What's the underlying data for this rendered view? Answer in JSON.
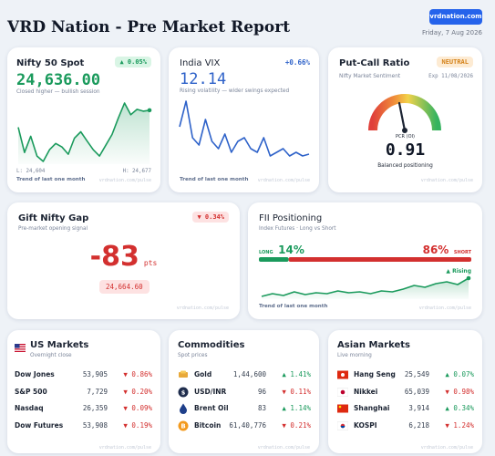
{
  "header": {
    "title": "VRD Nation - Pre Market Report",
    "button": "vrdnation.com",
    "date": "Friday, 7 Aug 2026"
  },
  "nifty": {
    "title": "Nifty 50 Spot",
    "change": "▲ 0.05%",
    "price": "24,636.00",
    "note": "Closed higher — bullish session",
    "low": "L: 24,604",
    "high": "H: 24,677",
    "caption": "Trend of last one month",
    "watermark": "vrdnation.com/pulse",
    "color": "#1a9a5c",
    "trend": [
      24650,
      24622,
      24640,
      24618,
      24612,
      24625,
      24632,
      24628,
      24620,
      24638,
      24645,
      24635,
      24625,
      24618,
      24630,
      24642,
      24660,
      24677,
      24664,
      24670,
      24668,
      24669
    ]
  },
  "vix": {
    "title": "India VIX",
    "change": "+0.66%",
    "value": "12.14",
    "note": "Rising volatility — wider swings expected",
    "caption": "Trend of last one month",
    "watermark": "vrdnation.com/pulse",
    "color": "#2e62c9",
    "trend": [
      12.9,
      13.6,
      12.6,
      12.4,
      13.1,
      12.5,
      12.3,
      12.7,
      12.2,
      12.5,
      12.6,
      12.3,
      12.2,
      12.6,
      12.1,
      12.2,
      12.3,
      12.1,
      12.2,
      12.1,
      12.15
    ]
  },
  "pcr": {
    "title": "Put-Call Ratio",
    "badge": "NEUTRAL",
    "subtitle": "Nifty Market Sentiment",
    "expiry": "Exp 11/08/2026",
    "gauge_label": "PCR (OI)",
    "value": "0.91",
    "note": "Balanced positioning",
    "watermark": "vrdnation.com/pulse"
  },
  "gift": {
    "title": "Gift Nifty Gap",
    "change": "▼ 0.34%",
    "subtitle": "Pre-market opening signal",
    "gap": "-83",
    "unit": "pts",
    "level": "24,664.60",
    "watermark": "vrdnation.com/pulse"
  },
  "fii": {
    "title": "FII Positioning",
    "subtitle": "Index Futures · Long vs Short",
    "long_label": "LONG",
    "long": {
      "value": 14,
      "label": "14%"
    },
    "short": {
      "value": 86,
      "label": "86%"
    },
    "short_label": "SHORT",
    "long_color": "#1a9a5c",
    "short_color": "#d3302f",
    "trend_label": "▲ Rising",
    "caption": "Trend of last one month",
    "watermark": "vrdnation.com/pulse",
    "trend": [
      12.0,
      12.3,
      12.1,
      12.5,
      12.2,
      12.4,
      12.3,
      12.6,
      12.4,
      12.5,
      12.3,
      12.6,
      12.5,
      12.8,
      13.2,
      13.0,
      13.4,
      13.6,
      13.3,
      14.0
    ]
  },
  "us": {
    "title": "US Markets",
    "subtitle": "Overnight close",
    "watermark": "vrdnation.com/pulse",
    "rows": [
      {
        "name": "Dow Jones",
        "value": "53,905",
        "change": "▼ 0.86%",
        "color": "#d3302f"
      },
      {
        "name": "S&P 500",
        "value": "7,729",
        "change": "▼ 0.20%",
        "color": "#d3302f"
      },
      {
        "name": "Nasdaq",
        "value": "26,359",
        "change": "▼ 0.09%",
        "color": "#d3302f"
      },
      {
        "name": "Dow Futures",
        "value": "53,908",
        "change": "▼ 0.19%",
        "color": "#d3302f"
      }
    ]
  },
  "commodities": {
    "title": "Commodities",
    "subtitle": "Spot prices",
    "watermark": "vrdnation.com/pulse",
    "rows": [
      {
        "name": "Gold",
        "value": "1,44,600",
        "change": "▲ 1.41%",
        "color": "#1a9a5c"
      },
      {
        "name": "USD/INR",
        "value": "96",
        "change": "▼ 0.11%",
        "color": "#d3302f"
      },
      {
        "name": "Brent Oil",
        "value": "83",
        "change": "▲ 1.14%",
        "color": "#1a9a5c"
      },
      {
        "name": "Bitcoin",
        "value": "61,40,776",
        "change": "▼ 0.21%",
        "color": "#d3302f"
      }
    ]
  },
  "asia": {
    "title": "Asian Markets",
    "subtitle": "Live morning",
    "watermark": "vrdnation.com/pulse",
    "rows": [
      {
        "name": "Hang Seng",
        "value": "25,549",
        "change": "▲ 0.07%",
        "color": "#1a9a5c"
      },
      {
        "name": "Nikkei",
        "value": "65,039",
        "change": "▼ 0.98%",
        "color": "#d3302f"
      },
      {
        "name": "Shanghai",
        "value": "3,914",
        "change": "▲ 0.34%",
        "color": "#1a9a5c"
      },
      {
        "name": "KOSPI",
        "value": "6,218",
        "change": "▼ 1.24%",
        "color": "#d3302f"
      }
    ]
  }
}
